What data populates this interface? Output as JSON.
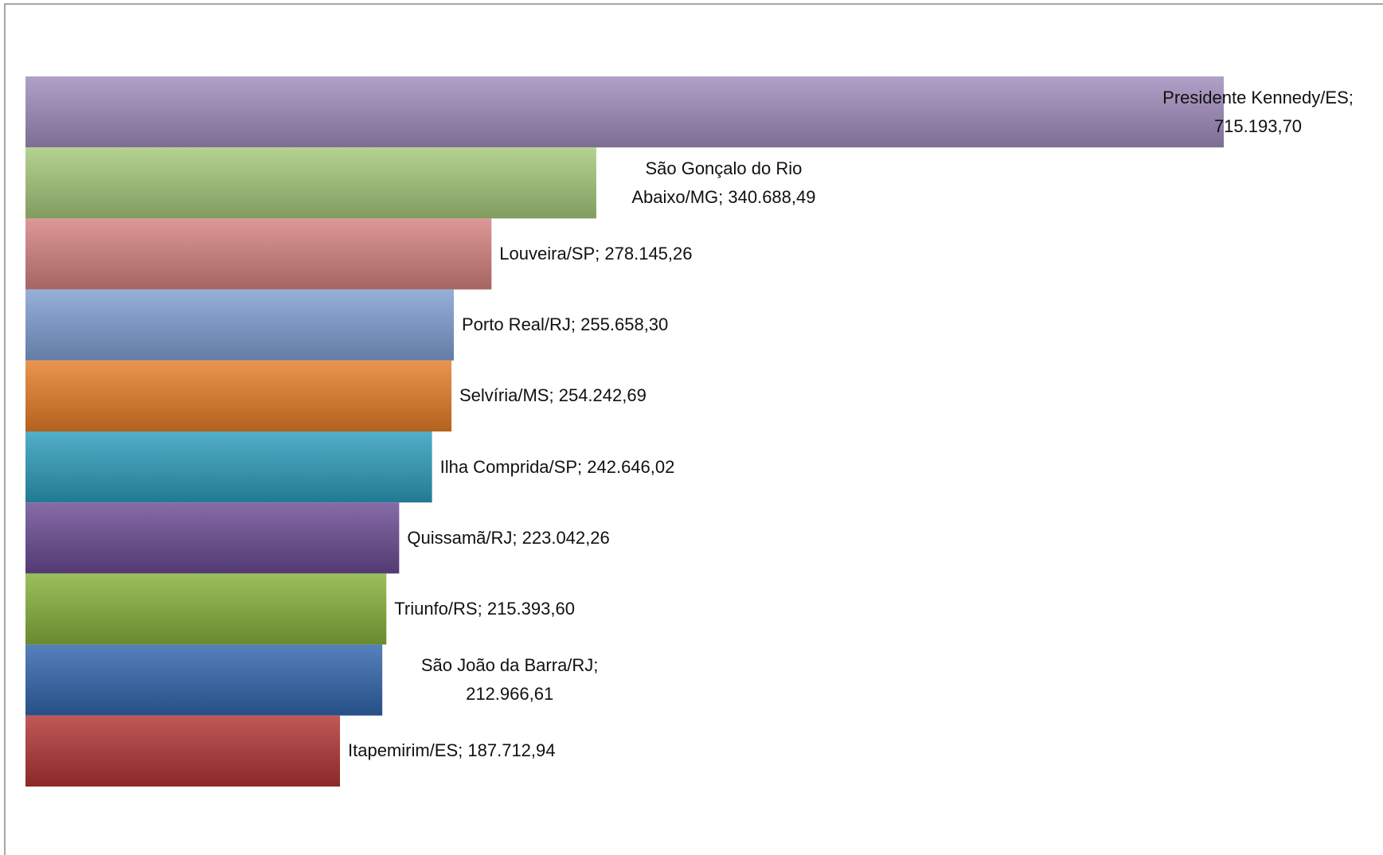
{
  "chart_data": {
    "type": "bar",
    "orientation": "horizontal",
    "categories": [
      "Presidente Kennedy/ES;",
      "São Gonçalo do Rio Abaixo/MG;",
      "Louveira/SP;",
      "Porto Real/RJ;",
      "Selvíria/MS;",
      "Ilha Comprida/SP;",
      "Quissamã/RJ;",
      "Triunfo/RS;",
      "São João da Barra/RJ;",
      "Itapemirim/ES;"
    ],
    "values": [
      715193.7,
      340688.49,
      278145.26,
      255658.3,
      254242.69,
      242646.02,
      223042.26,
      215393.6,
      212966.61,
      187712.94
    ],
    "value_labels": [
      "715.193,70",
      "340.688,49",
      "278.145,26",
      "255.658,30",
      "254.242,69",
      "242.646,02",
      "223.042,26",
      "215.393,60",
      "212.966,61",
      "187.712,94"
    ],
    "colors": [
      "#a08cbc",
      "#a6c87a",
      "#d4817f",
      "#7f9fd2",
      "#e67d26",
      "#2b9dbb",
      "#6b4a92",
      "#86b13a",
      "#3165ac",
      "#b13433"
    ]
  }
}
